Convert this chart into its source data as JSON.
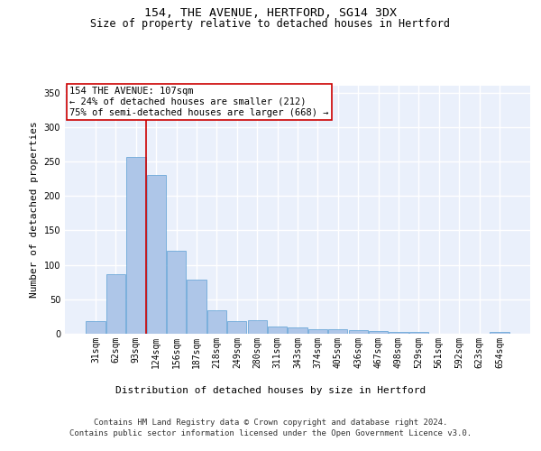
{
  "title1": "154, THE AVENUE, HERTFORD, SG14 3DX",
  "title2": "Size of property relative to detached houses in Hertford",
  "xlabel": "Distribution of detached houses by size in Hertford",
  "ylabel": "Number of detached properties",
  "footnote1": "Contains HM Land Registry data © Crown copyright and database right 2024.",
  "footnote2": "Contains public sector information licensed under the Open Government Licence v3.0.",
  "categories": [
    "31sqm",
    "62sqm",
    "93sqm",
    "124sqm",
    "156sqm",
    "187sqm",
    "218sqm",
    "249sqm",
    "280sqm",
    "311sqm",
    "343sqm",
    "374sqm",
    "405sqm",
    "436sqm",
    "467sqm",
    "498sqm",
    "529sqm",
    "561sqm",
    "592sqm",
    "623sqm",
    "654sqm"
  ],
  "values": [
    18,
    86,
    257,
    230,
    120,
    78,
    34,
    18,
    20,
    10,
    9,
    7,
    6,
    5,
    4,
    3,
    2,
    0,
    0,
    0,
    3
  ],
  "bar_color": "#aec6e8",
  "bar_edge_color": "#5a9fd4",
  "highlight_label": "154 THE AVENUE: 107sqm",
  "annotation_line1": "← 24% of detached houses are smaller (212)",
  "annotation_line2": "75% of semi-detached houses are larger (668) →",
  "annotation_box_color": "#ffffff",
  "annotation_box_edge_color": "#cc0000",
  "vline_color": "#cc0000",
  "vline_x": 2.5,
  "ylim": [
    0,
    360
  ],
  "yticks": [
    0,
    50,
    100,
    150,
    200,
    250,
    300,
    350
  ],
  "background_color": "#eaf0fb",
  "grid_color": "#ffffff",
  "title1_fontsize": 9.5,
  "title2_fontsize": 8.5,
  "ylabel_fontsize": 8,
  "xlabel_fontsize": 8,
  "tick_fontsize": 7,
  "annotation_fontsize": 7.5,
  "footnote_fontsize": 6.5
}
